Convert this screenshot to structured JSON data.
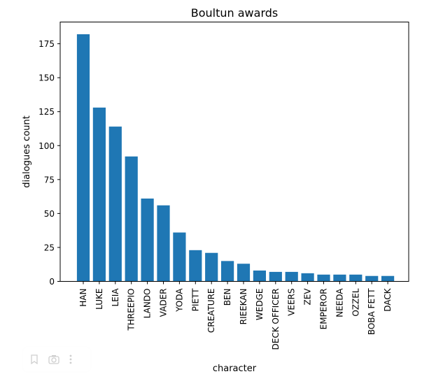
{
  "chart_data": {
    "type": "bar",
    "title": "Boultun awards",
    "xlabel": "character",
    "ylabel": "dialogues count",
    "categories": [
      "HAN",
      "LUKE",
      "LEIA",
      "THREEPIO",
      "LANDO",
      "VADER",
      "YODA",
      "PIETT",
      "CREATURE",
      "BEN",
      "RIEEKAN",
      "WEDGE",
      "DECK OFFICER",
      "VEERS",
      "ZEV",
      "EMPEROR",
      "NEEDA",
      "OZZEL",
      "BOBA FETT",
      "DACK"
    ],
    "values": [
      182,
      128,
      114,
      92,
      61,
      56,
      36,
      23,
      21,
      15,
      13,
      8,
      7,
      7,
      6,
      5,
      5,
      5,
      4,
      4
    ],
    "ylim": [
      0,
      191
    ],
    "yticks": [
      0,
      25,
      50,
      75,
      100,
      125,
      150,
      175
    ],
    "bar_color": "#1f77b4",
    "grid": false
  },
  "toolbar": {
    "icons": [
      "bookmark-icon",
      "camera-icon",
      "more-icon"
    ]
  }
}
